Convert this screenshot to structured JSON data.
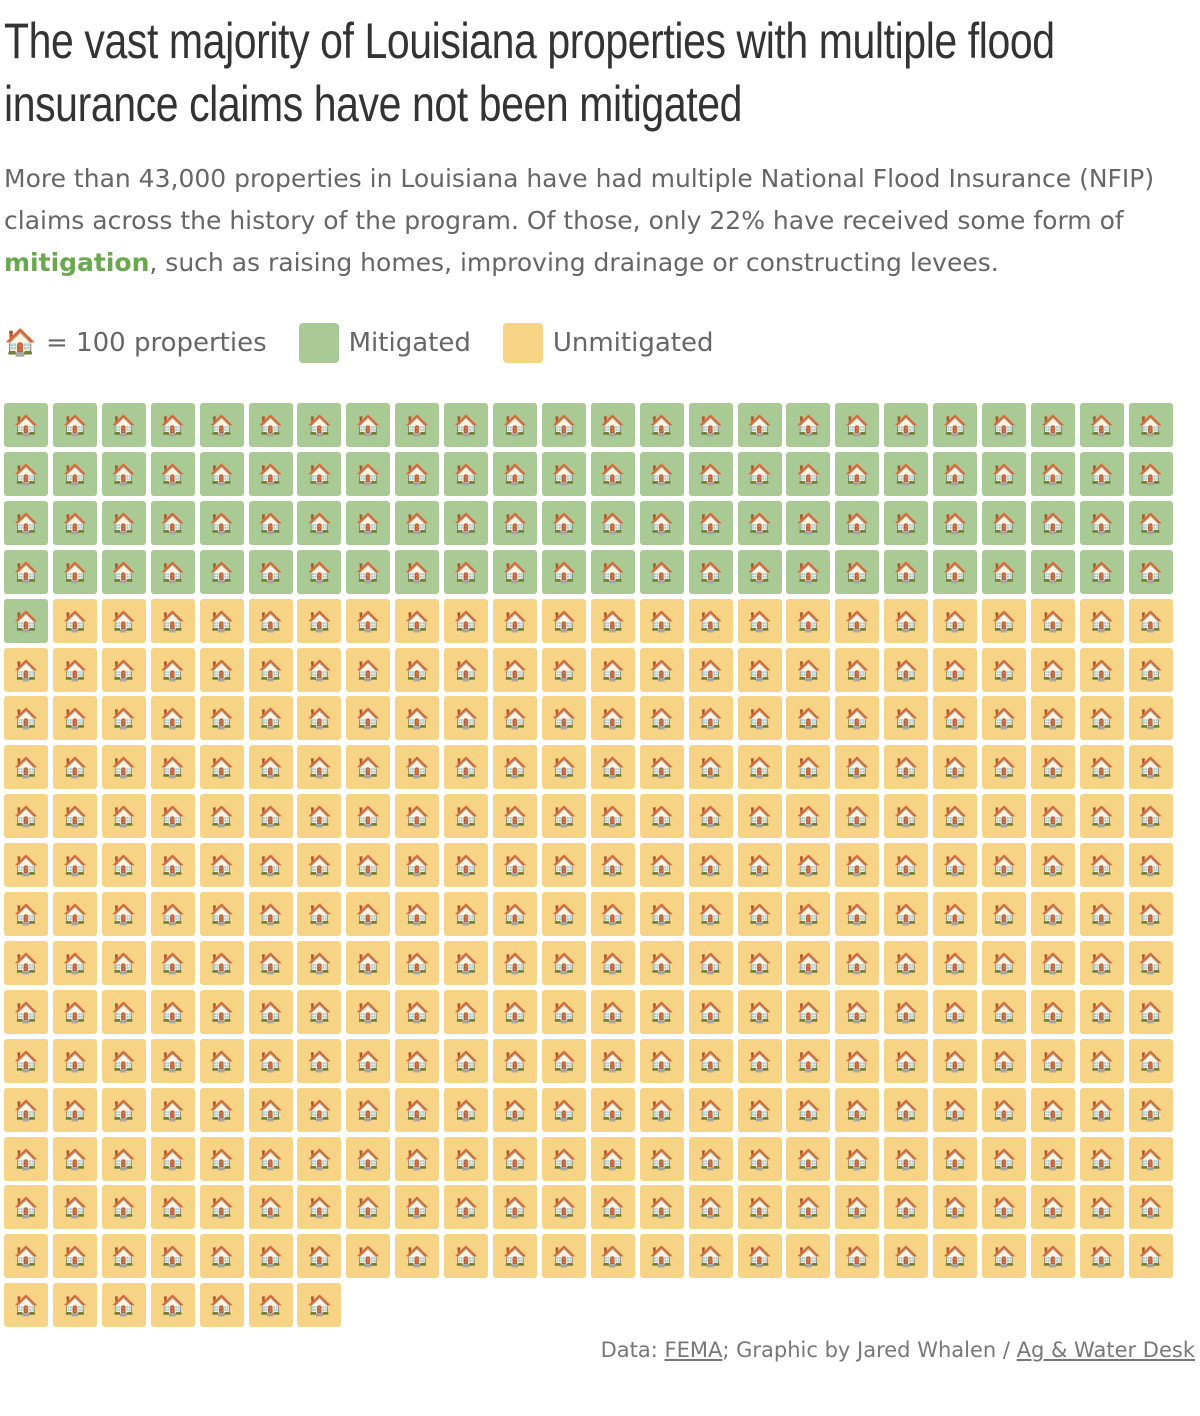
{
  "title": "The vast majority of Louisiana properties with multiple flood insurance claims have not been mitigated",
  "subtitle": {
    "before": "More than 43,000 properties in Louisiana have had multiple National Flood Insurance (NFIP) claims across the history of the program. Of those, only 22% have received some form of ",
    "highlight": "mitigation",
    "after": ", such as raising homes, improving drainage or constructing levees."
  },
  "legend": {
    "unit_icon": "🏠",
    "unit_label": "= 100 properties",
    "mitigated_label": "Mitigated",
    "unmitigated_label": "Unmitigated"
  },
  "colors": {
    "mitigated": "#a9c995",
    "unmitigated": "#f7d485",
    "highlight": "#6aa84f"
  },
  "chart_data": {
    "type": "waffle",
    "unit_value": 100,
    "columns": 24,
    "icon": "house-icon",
    "series": [
      {
        "name": "Mitigated",
        "units": 97,
        "color": "#a9c995"
      },
      {
        "name": "Unmitigated",
        "units": 342,
        "color": "#f7d485"
      }
    ]
  },
  "source": {
    "prefix": "Data: ",
    "data_link": "FEMA",
    "middle": "; Graphic by Jared Whalen / ",
    "credit_link": "Ag & Water Desk"
  }
}
